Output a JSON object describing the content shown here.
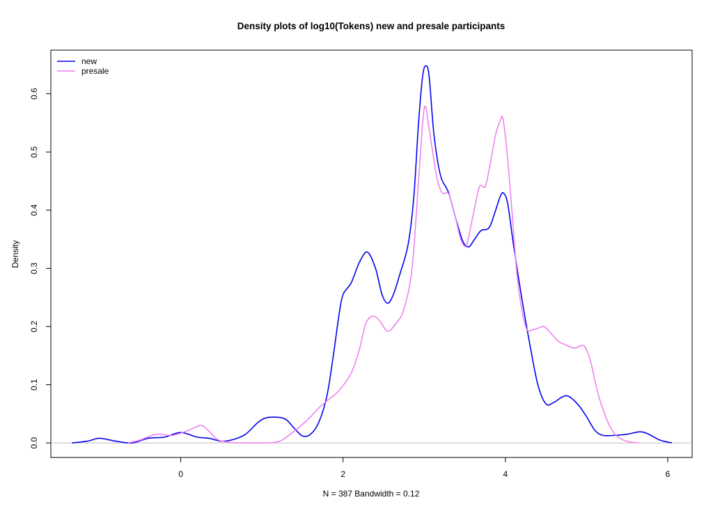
{
  "chart_data": {
    "type": "line",
    "title": "Density plots of log10(Tokens) new and presale participants",
    "xlabel": "N = 387   Bandwidth = 0.12",
    "ylabel": "Density",
    "xlim": [
      -1.6,
      6.3
    ],
    "ylim": [
      -0.025,
      0.675
    ],
    "xticks": [
      0,
      2,
      4,
      6
    ],
    "yticks": [
      0.0,
      0.1,
      0.2,
      0.3,
      0.4,
      0.5,
      0.6
    ],
    "ytick_labels": [
      "0.0",
      "0.1",
      "0.2",
      "0.3",
      "0.4",
      "0.5",
      "0.6"
    ],
    "grid": false,
    "legend_position": "top-left",
    "series": [
      {
        "name": "new",
        "color": "#0000ee",
        "x": [
          -1.34,
          -1.15,
          -1.0,
          -0.8,
          -0.6,
          -0.4,
          -0.2,
          0.0,
          0.2,
          0.35,
          0.5,
          0.65,
          0.8,
          0.95,
          1.05,
          1.2,
          1.3,
          1.4,
          1.5,
          1.6,
          1.7,
          1.8,
          1.88,
          1.95,
          2.0,
          2.1,
          2.2,
          2.3,
          2.4,
          2.48,
          2.55,
          2.62,
          2.7,
          2.8,
          2.87,
          2.93,
          2.98,
          3.02,
          3.06,
          3.12,
          3.2,
          3.3,
          3.4,
          3.48,
          3.55,
          3.62,
          3.7,
          3.8,
          3.88,
          3.94,
          3.98,
          4.03,
          4.1,
          4.2,
          4.3,
          4.4,
          4.5,
          4.6,
          4.7,
          4.78,
          4.9,
          5.0,
          5.1,
          5.2,
          5.35,
          5.5,
          5.65,
          5.75,
          5.9,
          6.05
        ],
        "y": [
          0.0,
          0.003,
          0.008,
          0.003,
          0.0,
          0.008,
          0.01,
          0.018,
          0.01,
          0.008,
          0.003,
          0.006,
          0.015,
          0.035,
          0.043,
          0.044,
          0.04,
          0.025,
          0.012,
          0.015,
          0.035,
          0.08,
          0.15,
          0.22,
          0.255,
          0.275,
          0.31,
          0.328,
          0.3,
          0.255,
          0.24,
          0.255,
          0.29,
          0.34,
          0.42,
          0.55,
          0.63,
          0.648,
          0.63,
          0.53,
          0.46,
          0.43,
          0.38,
          0.345,
          0.337,
          0.35,
          0.365,
          0.37,
          0.4,
          0.425,
          0.429,
          0.41,
          0.34,
          0.25,
          0.17,
          0.1,
          0.067,
          0.07,
          0.079,
          0.08,
          0.065,
          0.045,
          0.022,
          0.013,
          0.013,
          0.015,
          0.019,
          0.016,
          0.005,
          0.0
        ]
      },
      {
        "name": "presale",
        "color": "#ee82ee",
        "x": [
          -0.65,
          -0.5,
          -0.3,
          -0.1,
          0.1,
          0.25,
          0.35,
          0.45,
          0.6,
          0.8,
          1.0,
          1.2,
          1.35,
          1.55,
          1.7,
          1.8,
          1.95,
          2.1,
          2.2,
          2.28,
          2.37,
          2.45,
          2.55,
          2.65,
          2.75,
          2.85,
          2.93,
          3.0,
          3.06,
          3.15,
          3.22,
          3.3,
          3.38,
          3.45,
          3.52,
          3.6,
          3.68,
          3.75,
          3.8,
          3.88,
          3.94,
          3.97,
          4.02,
          4.08,
          4.15,
          4.25,
          4.35,
          4.47,
          4.55,
          4.65,
          4.75,
          4.85,
          4.93,
          4.98,
          5.05,
          5.15,
          5.3,
          5.45,
          5.65
        ],
        "y": [
          0.0,
          0.005,
          0.015,
          0.013,
          0.022,
          0.03,
          0.02,
          0.006,
          0.001,
          0.0,
          0.0,
          0.002,
          0.015,
          0.038,
          0.06,
          0.072,
          0.09,
          0.12,
          0.16,
          0.205,
          0.218,
          0.21,
          0.192,
          0.205,
          0.23,
          0.3,
          0.45,
          0.575,
          0.54,
          0.46,
          0.43,
          0.428,
          0.39,
          0.35,
          0.34,
          0.39,
          0.44,
          0.44,
          0.47,
          0.53,
          0.555,
          0.557,
          0.5,
          0.4,
          0.28,
          0.2,
          0.195,
          0.2,
          0.19,
          0.175,
          0.168,
          0.163,
          0.167,
          0.165,
          0.14,
          0.08,
          0.025,
          0.005,
          0.0
        ]
      }
    ]
  }
}
